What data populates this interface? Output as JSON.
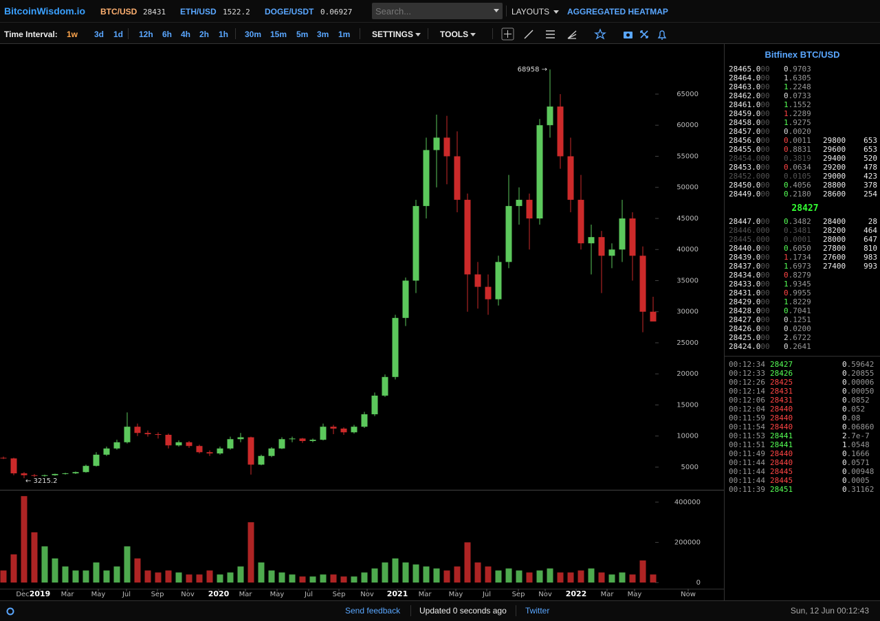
{
  "header": {
    "logo": "BitcoinWisdom.io",
    "tickers": [
      {
        "pair": "BTC/USD",
        "price": "28431",
        "color": "#ffb070"
      },
      {
        "pair": "ETH/USD",
        "price": "1522.2",
        "color": "#5aa7ff"
      },
      {
        "pair": "DOGE/USDT",
        "price": "0.06927",
        "color": "#5aa7ff"
      }
    ],
    "search_placeholder": "Search...",
    "layouts": "LAYOUTS",
    "heatmap": "AGGREGATED HEATMAP"
  },
  "toolbar": {
    "label": "Time Interval:",
    "intervals": [
      "1w",
      "3d",
      "1d",
      "12h",
      "6h",
      "4h",
      "2h",
      "1h",
      "30m",
      "15m",
      "5m",
      "3m",
      "1m"
    ],
    "active_interval": "1w",
    "settings": "SETTINGS",
    "tools": "TOOLS"
  },
  "chart_data": {
    "type": "candlestick",
    "x": [
      1,
      4,
      7,
      10,
      13,
      16,
      19,
      22,
      25,
      28,
      31,
      34,
      37,
      40,
      43,
      46,
      49,
      52,
      55,
      58,
      61,
      64,
      67,
      70,
      73,
      76,
      79,
      82,
      85,
      88,
      91,
      94,
      97,
      100,
      103,
      106,
      109,
      112,
      115,
      118,
      121,
      124,
      127,
      130,
      133,
      136,
      139,
      142,
      145,
      148,
      151,
      154,
      157,
      160,
      163,
      166,
      169,
      172,
      175,
      178,
      181,
      184,
      187,
      190
    ],
    "open": [
      6500,
      6400,
      4000,
      3700,
      3600,
      3700,
      3900,
      4000,
      4200,
      5200,
      7000,
      8000,
      9000,
      11500,
      10500,
      10300,
      10200,
      8500,
      9000,
      8400,
      7400,
      7200,
      8000,
      9500,
      9800,
      5400,
      6800,
      8000,
      9500,
      9600,
      9200,
      9400,
      11500,
      11200,
      10600,
      11500,
      13500,
      16500,
      19500,
      29000,
      35000,
      47000,
      56000,
      58000,
      55000,
      48000,
      36000,
      34000,
      32000,
      38000,
      47000,
      48000,
      45000,
      60000,
      63000,
      55000,
      48000,
      41000,
      42000,
      39000,
      40000,
      45000,
      39000,
      30000
    ],
    "high": [
      6700,
      6500,
      4200,
      3900,
      3800,
      3950,
      4100,
      4300,
      5400,
      7400,
      8300,
      9400,
      13800,
      12000,
      10900,
      10600,
      10400,
      9300,
      9200,
      8600,
      7700,
      8300,
      9900,
      10500,
      9900,
      7000,
      8200,
      9800,
      9900,
      9700,
      9600,
      12000,
      11800,
      11400,
      11800,
      13900,
      17000,
      19900,
      29500,
      35500,
      48000,
      58000,
      61700,
      61500,
      59000,
      49000,
      38000,
      36000,
      39000,
      52000,
      50000,
      49000,
      61000,
      68958,
      65000,
      58000,
      52000,
      44000,
      43000,
      41000,
      48000,
      46000,
      40500,
      32400
    ],
    "low": [
      6300,
      3700,
      3215.2,
      3400,
      3450,
      3600,
      3800,
      3900,
      4100,
      5100,
      6800,
      7800,
      8800,
      10000,
      9900,
      9600,
      8000,
      8300,
      8100,
      7200,
      6800,
      7000,
      7800,
      9000,
      3800,
      5300,
      6600,
      7900,
      9000,
      8900,
      9000,
      9300,
      10300,
      10200,
      10400,
      11300,
      13200,
      16300,
      19100,
      27700,
      33000,
      45000,
      50000,
      50500,
      46000,
      30000,
      30500,
      29500,
      31000,
      37000,
      44000,
      40000,
      44000,
      58000,
      53000,
      46000,
      40000,
      36000,
      33000,
      37000,
      38000,
      35000,
      26700,
      28500
    ],
    "close": [
      6400,
      4000,
      3700,
      3600,
      3700,
      3900,
      4000,
      4200,
      5200,
      7000,
      8000,
      9000,
      11500,
      10500,
      10300,
      10200,
      8500,
      9000,
      8400,
      7400,
      7200,
      8000,
      9500,
      9800,
      5400,
      6800,
      8000,
      9500,
      9600,
      9200,
      9400,
      11500,
      11200,
      10600,
      11500,
      13500,
      16500,
      19500,
      29000,
      35000,
      47000,
      56000,
      58000,
      55000,
      48000,
      36000,
      34000,
      32000,
      38000,
      47000,
      48000,
      45000,
      60000,
      63000,
      55000,
      48000,
      41000,
      42000,
      39000,
      40000,
      45000,
      39000,
      30000,
      28431
    ],
    "volume": [
      60000,
      140000,
      430000,
      250000,
      180000,
      120000,
      80000,
      60000,
      60000,
      100000,
      60000,
      80000,
      180000,
      120000,
      60000,
      50000,
      60000,
      50000,
      40000,
      40000,
      60000,
      40000,
      50000,
      80000,
      300000,
      100000,
      60000,
      50000,
      40000,
      30000,
      30000,
      40000,
      40000,
      30000,
      30000,
      50000,
      70000,
      100000,
      120000,
      100000,
      90000,
      80000,
      70000,
      60000,
      80000,
      200000,
      100000,
      80000,
      60000,
      70000,
      60000,
      50000,
      60000,
      70000,
      50000,
      50000,
      60000,
      70000,
      50000,
      40000,
      50000,
      40000,
      110000,
      40000
    ],
    "up_color": "#5cc85c",
    "down_color": "#cc2a2a",
    "annotations": {
      "max": "68958 →",
      "min": "← 3215.2"
    },
    "xlim": [
      0,
      210.4
    ],
    "xticks": [
      {
        "value": 6.6,
        "label": "Dec"
      },
      {
        "value": 11.6,
        "label": "2019"
      },
      {
        "value": 19.6,
        "label": "Mar"
      },
      {
        "value": 28.6,
        "label": "May"
      },
      {
        "value": 36.8,
        "label": "Jul"
      },
      {
        "value": 45.8,
        "label": "Sep"
      },
      {
        "value": 54.6,
        "label": "Nov"
      },
      {
        "value": 63.6,
        "label": "2020"
      },
      {
        "value": 71.4,
        "label": "Mar"
      },
      {
        "value": 80.6,
        "label": "May"
      },
      {
        "value": 89.8,
        "label": "Jul"
      },
      {
        "value": 98.6,
        "label": "Sep"
      },
      {
        "value": 106.8,
        "label": "Nov"
      },
      {
        "value": 115.6,
        "label": "2021"
      },
      {
        "value": 123.6,
        "label": "Mar"
      },
      {
        "value": 132.6,
        "label": "May"
      },
      {
        "value": 141.6,
        "label": "Jul"
      },
      {
        "value": 150.8,
        "label": "Sep"
      },
      {
        "value": 158.6,
        "label": "Nov"
      },
      {
        "value": 167.6,
        "label": "2022"
      },
      {
        "value": 176.6,
        "label": "Mar"
      },
      {
        "value": 184.6,
        "label": "May"
      },
      {
        "value": 200.2,
        "label": "Now"
      }
    ],
    "ylim": [
      1464,
      73066
    ],
    "yticks": [
      5000,
      10000,
      15000,
      20000,
      25000,
      30000,
      35000,
      40000,
      45000,
      50000,
      55000,
      60000,
      65000
    ],
    "volume_ylim": [
      0,
      458000
    ],
    "volume_yticks": [
      0,
      200000,
      400000
    ]
  },
  "order_book": {
    "title": "Bitfinex BTC/USD",
    "asks": [
      {
        "price": "28465.000",
        "amount": "0.9703",
        "color": "#ddd"
      },
      {
        "price": "28464.000",
        "amount": "1.6305",
        "color": "#ddd"
      },
      {
        "price": "28463.000",
        "amount": "1.2248",
        "color": "#5f5"
      },
      {
        "price": "28462.000",
        "amount": "0.0733",
        "color": "#ddd"
      },
      {
        "price": "28461.000",
        "amount": "1.1552",
        "color": "#5f5"
      },
      {
        "price": "28459.000",
        "amount": "1.2289",
        "color": "#f44"
      },
      {
        "price": "28458.000",
        "amount": "1.9275",
        "color": "#5f5"
      },
      {
        "price": "28457.000",
        "amount": "0.0020",
        "color": "#ddd"
      },
      {
        "price": "28456.000",
        "amount": "0.0011",
        "color": "#f44"
      },
      {
        "price": "28455.000",
        "amount": "0.8831",
        "color": "#f44"
      },
      {
        "price": "28454.000",
        "amount": "0.3819",
        "color": "#555"
      },
      {
        "price": "28453.000",
        "amount": "0.0634",
        "color": "#f44"
      },
      {
        "price": "28452.000",
        "amount": "0.0105",
        "color": "#555"
      },
      {
        "price": "28450.000",
        "amount": "0.4056",
        "color": "#5f5"
      },
      {
        "price": "28449.000",
        "amount": "0.2180",
        "color": "#5f5"
      }
    ],
    "ask_depth": [
      [
        "29800",
        "653"
      ],
      [
        "29600",
        "653"
      ],
      [
        "29400",
        "520"
      ],
      [
        "29200",
        "478"
      ],
      [
        "29000",
        "423"
      ],
      [
        "28800",
        "378"
      ],
      [
        "28600",
        "254"
      ]
    ],
    "last_price": "28427",
    "bids": [
      {
        "price": "28447.000",
        "amount": "0.3482",
        "color": "#5f5"
      },
      {
        "price": "28446.000",
        "amount": "0.3481",
        "color": "#555"
      },
      {
        "price": "28445.000",
        "amount": "0.0001",
        "color": "#555"
      },
      {
        "price": "28440.000",
        "amount": "0.6050",
        "color": "#5f5"
      },
      {
        "price": "28439.000",
        "amount": "1.1734",
        "color": "#f44"
      },
      {
        "price": "28437.000",
        "amount": "1.6973",
        "color": "#5f5"
      },
      {
        "price": "28434.000",
        "amount": "0.8279",
        "color": "#f44"
      },
      {
        "price": "28433.000",
        "amount": "1.9345",
        "color": "#5f5"
      },
      {
        "price": "28431.000",
        "amount": "0.9955",
        "color": "#f44"
      },
      {
        "price": "28429.000",
        "amount": "1.8229",
        "color": "#5f5"
      },
      {
        "price": "28428.000",
        "amount": "0.7041",
        "color": "#5f5"
      },
      {
        "price": "28427.000",
        "amount": "0.1251",
        "color": "#ddd"
      },
      {
        "price": "28426.000",
        "amount": "0.0200",
        "color": "#ddd"
      },
      {
        "price": "28425.000",
        "amount": "2.6722",
        "color": "#ddd"
      },
      {
        "price": "28424.000",
        "amount": "0.2641",
        "color": "#ddd"
      }
    ],
    "bid_depth": [
      [
        "28400",
        "28"
      ],
      [
        "28200",
        "464"
      ],
      [
        "28000",
        "647"
      ],
      [
        "27800",
        "810"
      ],
      [
        "27600",
        "983"
      ],
      [
        "27400",
        "993"
      ]
    ]
  },
  "trades": [
    {
      "time": "00:12:34",
      "price": "28427",
      "amount": "0.59642",
      "color": "#5f5"
    },
    {
      "time": "00:12:33",
      "price": "28426",
      "amount": "0.20855",
      "color": "#5f5"
    },
    {
      "time": "00:12:26",
      "price": "28425",
      "amount": "0.00006",
      "color": "#f44"
    },
    {
      "time": "00:12:14",
      "price": "28431",
      "amount": "0.00050",
      "color": "#f44"
    },
    {
      "time": "00:12:06",
      "price": "28431",
      "amount": "0.0852",
      "color": "#f44"
    },
    {
      "time": "00:12:04",
      "price": "28440",
      "amount": "0.052",
      "color": "#f44"
    },
    {
      "time": "00:11:59",
      "price": "28440",
      "amount": "0.08",
      "color": "#f44"
    },
    {
      "time": "00:11:54",
      "price": "28440",
      "amount": "0.06860",
      "color": "#f44"
    },
    {
      "time": "00:11:53",
      "price": "28441",
      "amount": "2.7e-7",
      "color": "#5f5"
    },
    {
      "time": "00:11:51",
      "price": "28441",
      "amount": "1.0548",
      "color": "#5f5"
    },
    {
      "time": "00:11:49",
      "price": "28440",
      "amount": "0.1666",
      "color": "#f44"
    },
    {
      "time": "00:11:44",
      "price": "28440",
      "amount": "0.0571",
      "color": "#f44"
    },
    {
      "time": "00:11:44",
      "price": "28445",
      "amount": "0.00948",
      "color": "#f44"
    },
    {
      "time": "00:11:44",
      "price": "28445",
      "amount": "0.0005",
      "color": "#f44"
    },
    {
      "time": "00:11:39",
      "price": "28451",
      "amount": "0.31162",
      "color": "#5f5"
    }
  ],
  "footer": {
    "feedback": "Send feedback",
    "updated": "Updated 0 seconds ago",
    "twitter": "Twitter",
    "datetime": "Sun, 12 Jun 00:12:43"
  }
}
